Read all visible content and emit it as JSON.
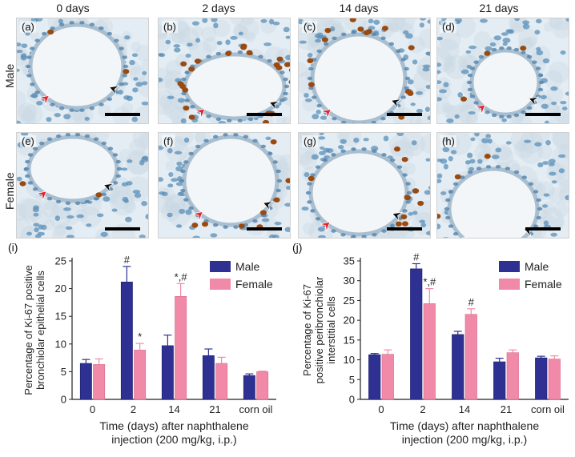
{
  "columns": [
    "0 days",
    "2 days",
    "14 days",
    "21 days"
  ],
  "rows": [
    "Male",
    "Female"
  ],
  "panel_labels": [
    "(a)",
    "(b)",
    "(c)",
    "(d)",
    "(e)",
    "(f)",
    "(g)",
    "(h)"
  ],
  "colors": {
    "male": "#2e3192",
    "female": "#f08aa8",
    "tissue_bg": "#e4edf3",
    "nucleus_blue": "#5b8fb8",
    "nucleus_brown": "#9a4a10",
    "arrow_red": "#e8202a",
    "arrow_black": "#111111"
  },
  "chart_data": [
    {
      "panel": "(i)",
      "type": "bar",
      "categories": [
        "0",
        "2",
        "14",
        "21",
        "corn oil"
      ],
      "series": [
        {
          "name": "Male",
          "values": [
            6.5,
            21.2,
            9.7,
            7.9,
            4.3
          ],
          "errors": [
            0.7,
            2.8,
            1.9,
            1.2,
            0.3
          ],
          "annotations": [
            "",
            "#",
            "",
            "",
            ""
          ]
        },
        {
          "name": "Female",
          "values": [
            6.3,
            8.9,
            18.6,
            6.5,
            5.0
          ],
          "errors": [
            1.0,
            1.2,
            2.3,
            1.1,
            0.1
          ],
          "annotations": [
            "",
            "*",
            "*,#",
            "",
            ""
          ]
        }
      ],
      "ylabel": "Percentage of Ki-67 positive bronchiolar epithelial cells",
      "ylabel_lines": [
        "Percentage of Ki-67 positive",
        "bronchiolar epithelial cells"
      ],
      "xlabel_lines": [
        "Time (days) after naphthalene",
        "injection (200 mg/kg, i.p.)"
      ],
      "ylim": [
        0,
        25
      ],
      "yticks": [
        "0",
        "5",
        "10",
        "15",
        "20",
        "25"
      ],
      "legend": "top-right"
    },
    {
      "panel": "(j)",
      "type": "bar",
      "categories": [
        "0",
        "2",
        "14",
        "21",
        "corn oil"
      ],
      "series": [
        {
          "name": "Male",
          "values": [
            11.3,
            33.0,
            16.4,
            9.5,
            10.5
          ],
          "errors": [
            0.3,
            1.3,
            0.8,
            0.9,
            0.4
          ],
          "annotations": [
            "",
            "#",
            "",
            "",
            ""
          ]
        },
        {
          "name": "Female",
          "values": [
            11.4,
            24.2,
            21.5,
            11.8,
            10.2
          ],
          "errors": [
            1.1,
            3.8,
            1.4,
            0.7,
            0.8
          ],
          "annotations": [
            "",
            "*,#",
            "#",
            "",
            ""
          ]
        }
      ],
      "ylabel": "Percentage of Ki-67 positive peribronchiolar interstitial cells",
      "ylabel_lines": [
        "Percentage of Ki-67",
        "positive peribronchiolar",
        "interstitial cells"
      ],
      "xlabel_lines": [
        "Time (days) after naphthalene",
        "injection (200 mg/kg, i.p.)"
      ],
      "ylim": [
        0,
        35
      ],
      "yticks": [
        "0",
        "5",
        "10",
        "15",
        "20",
        "25",
        "30",
        "35"
      ],
      "legend": "top-right"
    }
  ]
}
